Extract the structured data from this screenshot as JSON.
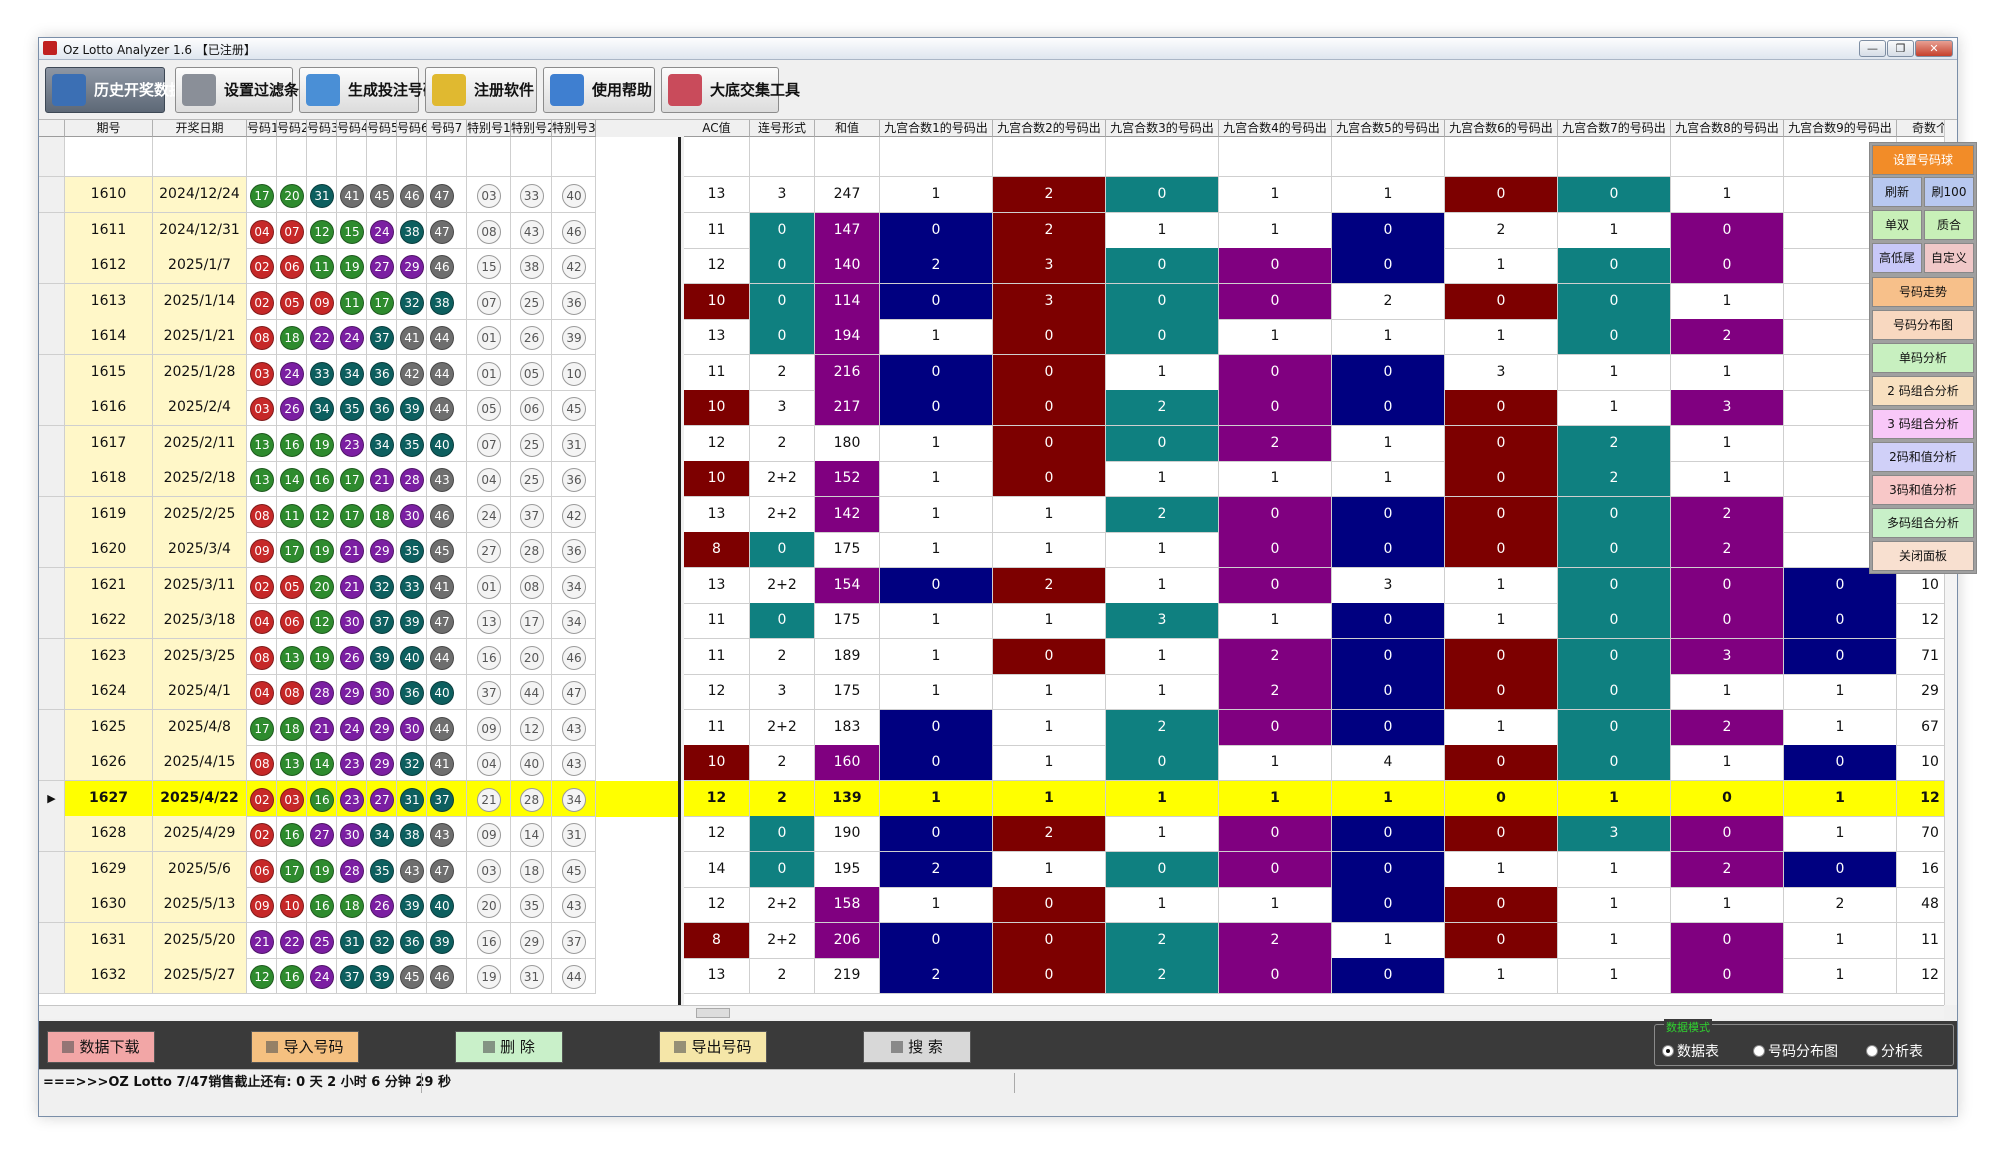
{
  "window": {
    "title": "Oz Lotto Analyzer 1.6 【已注册】",
    "controls": {
      "minimize": "—",
      "maximize": "❐",
      "close": "✕"
    }
  },
  "toolbar": [
    {
      "label": "历史开奖数据",
      "icon": "calendar-icon",
      "color": "#3b6fb4",
      "active": true
    },
    {
      "label": "设置过滤条件",
      "icon": "tools-icon",
      "color": "#8a8f98"
    },
    {
      "label": "生成投注号码",
      "icon": "arrow-icon",
      "color": "#4a8fd6"
    },
    {
      "label": "注册软件",
      "icon": "key-icon",
      "color": "#e0b930"
    },
    {
      "label": "使用帮助",
      "icon": "help-icon",
      "color": "#3f7fd0"
    },
    {
      "label": "大底交集工具",
      "icon": "pie-chart-icon",
      "color": "#c94b5b"
    }
  ],
  "left_columns": [
    "期号",
    "开奖日期",
    "号码1",
    "号码2",
    "号码3",
    "号码4",
    "号码5",
    "号码6",
    "号码7",
    "特别号1",
    "特别号2",
    "特别号3"
  ],
  "right_columns": [
    "AC值",
    "连号形式",
    "和值",
    "九宫合数1的号码出",
    "九宫合数2的号码出",
    "九宫合数3的号码出",
    "九宫合数4的号码出",
    "九宫合数5的号码出",
    "九宫合数6的号码出",
    "九宫合数7的号码出",
    "九宫合数8的号码出",
    "九宫合数9的号码出",
    "奇数个"
  ],
  "selected_issue": "1627",
  "rows": [
    {
      "issue": "1610",
      "date": "2024/12/24",
      "nums": [
        "17",
        "20",
        "31",
        "41",
        "45",
        "46",
        "47"
      ],
      "specials": [
        "03",
        "33",
        "40"
      ],
      "stats": [
        "13",
        "3",
        "247",
        "1",
        "2",
        "0",
        "1",
        "1",
        "0",
        "0",
        "1",
        ""
      ]
    },
    {
      "issue": "1611",
      "date": "2024/12/31",
      "nums": [
        "04",
        "07",
        "12",
        "15",
        "24",
        "38",
        "47"
      ],
      "specials": [
        "08",
        "43",
        "46"
      ],
      "stats": [
        "11",
        "0",
        "147",
        "0",
        "2",
        "1",
        "1",
        "0",
        "2",
        "1",
        "0",
        ""
      ]
    },
    {
      "issue": "1612",
      "date": "2025/1/7",
      "nums": [
        "02",
        "06",
        "11",
        "19",
        "27",
        "29",
        "46"
      ],
      "specials": [
        "15",
        "38",
        "42"
      ],
      "stats": [
        "12",
        "0",
        "140",
        "2",
        "3",
        "0",
        "0",
        "0",
        "1",
        "0",
        "0",
        ""
      ]
    },
    {
      "issue": "1613",
      "date": "2025/1/14",
      "nums": [
        "02",
        "05",
        "09",
        "11",
        "17",
        "32",
        "38"
      ],
      "specials": [
        "07",
        "25",
        "36"
      ],
      "stats": [
        "10",
        "0",
        "114",
        "0",
        "3",
        "0",
        "0",
        "2",
        "0",
        "0",
        "1",
        ""
      ]
    },
    {
      "issue": "1614",
      "date": "2025/1/21",
      "nums": [
        "08",
        "18",
        "22",
        "24",
        "37",
        "41",
        "44"
      ],
      "specials": [
        "01",
        "26",
        "39"
      ],
      "stats": [
        "13",
        "0",
        "194",
        "1",
        "0",
        "0",
        "1",
        "1",
        "1",
        "0",
        "2",
        ""
      ]
    },
    {
      "issue": "1615",
      "date": "2025/1/28",
      "nums": [
        "03",
        "24",
        "33",
        "34",
        "36",
        "42",
        "44"
      ],
      "specials": [
        "01",
        "05",
        "10"
      ],
      "stats": [
        "11",
        "2",
        "216",
        "0",
        "0",
        "1",
        "0",
        "0",
        "3",
        "1",
        "1",
        ""
      ]
    },
    {
      "issue": "1616",
      "date": "2025/2/4",
      "nums": [
        "03",
        "26",
        "34",
        "35",
        "36",
        "39",
        "44"
      ],
      "specials": [
        "05",
        "06",
        "45"
      ],
      "stats": [
        "10",
        "3",
        "217",
        "0",
        "0",
        "2",
        "0",
        "0",
        "0",
        "1",
        "3",
        ""
      ]
    },
    {
      "issue": "1617",
      "date": "2025/2/11",
      "nums": [
        "13",
        "16",
        "19",
        "23",
        "34",
        "35",
        "40"
      ],
      "specials": [
        "07",
        "25",
        "31"
      ],
      "stats": [
        "12",
        "2",
        "180",
        "1",
        "0",
        "0",
        "2",
        "1",
        "0",
        "2",
        "1",
        ""
      ]
    },
    {
      "issue": "1618",
      "date": "2025/2/18",
      "nums": [
        "13",
        "14",
        "16",
        "17",
        "21",
        "28",
        "43"
      ],
      "specials": [
        "04",
        "25",
        "36"
      ],
      "stats": [
        "10",
        "2+2",
        "152",
        "1",
        "0",
        "1",
        "1",
        "1",
        "0",
        "2",
        "1",
        ""
      ]
    },
    {
      "issue": "1619",
      "date": "2025/2/25",
      "nums": [
        "08",
        "11",
        "12",
        "17",
        "18",
        "30",
        "46"
      ],
      "specials": [
        "24",
        "37",
        "42"
      ],
      "stats": [
        "13",
        "2+2",
        "142",
        "1",
        "1",
        "2",
        "0",
        "0",
        "0",
        "0",
        "2",
        ""
      ]
    },
    {
      "issue": "1620",
      "date": "2025/3/4",
      "nums": [
        "09",
        "17",
        "19",
        "21",
        "29",
        "35",
        "45"
      ],
      "specials": [
        "27",
        "28",
        "36"
      ],
      "stats": [
        "8",
        "0",
        "175",
        "1",
        "1",
        "1",
        "0",
        "0",
        "0",
        "0",
        "2",
        ""
      ]
    },
    {
      "issue": "1621",
      "date": "2025/3/11",
      "nums": [
        "02",
        "05",
        "20",
        "21",
        "32",
        "33",
        "41"
      ],
      "specials": [
        "01",
        "08",
        "34"
      ],
      "stats": [
        "13",
        "2+2",
        "154",
        "0",
        "2",
        "1",
        "0",
        "3",
        "1",
        "0",
        "0",
        "0",
        "10"
      ]
    },
    {
      "issue": "1622",
      "date": "2025/3/18",
      "nums": [
        "04",
        "06",
        "12",
        "30",
        "37",
        "39",
        "47"
      ],
      "specials": [
        "13",
        "17",
        "34"
      ],
      "stats": [
        "11",
        "0",
        "175",
        "1",
        "1",
        "3",
        "1",
        "0",
        "1",
        "0",
        "0",
        "0",
        "12"
      ]
    },
    {
      "issue": "1623",
      "date": "2025/3/25",
      "nums": [
        "08",
        "13",
        "19",
        "26",
        "39",
        "40",
        "44"
      ],
      "specials": [
        "16",
        "20",
        "46"
      ],
      "stats": [
        "11",
        "2",
        "189",
        "1",
        "0",
        "1",
        "2",
        "0",
        "0",
        "0",
        "3",
        "0",
        "71"
      ]
    },
    {
      "issue": "1624",
      "date": "2025/4/1",
      "nums": [
        "04",
        "08",
        "28",
        "29",
        "30",
        "36",
        "40"
      ],
      "specials": [
        "37",
        "44",
        "47"
      ],
      "stats": [
        "12",
        "3",
        "175",
        "1",
        "1",
        "1",
        "2",
        "0",
        "0",
        "0",
        "1",
        "1",
        "29"
      ]
    },
    {
      "issue": "1625",
      "date": "2025/4/8",
      "nums": [
        "17",
        "18",
        "21",
        "24",
        "29",
        "30",
        "44"
      ],
      "specials": [
        "09",
        "12",
        "43"
      ],
      "stats": [
        "11",
        "2+2",
        "183",
        "0",
        "1",
        "2",
        "0",
        "0",
        "1",
        "0",
        "2",
        "1",
        "67"
      ]
    },
    {
      "issue": "1626",
      "date": "2025/4/15",
      "nums": [
        "08",
        "13",
        "14",
        "23",
        "29",
        "32",
        "41"
      ],
      "specials": [
        "04",
        "40",
        "43"
      ],
      "stats": [
        "10",
        "2",
        "160",
        "0",
        "1",
        "0",
        "1",
        "4",
        "0",
        "0",
        "1",
        "0",
        "10"
      ]
    },
    {
      "issue": "1627",
      "date": "2025/4/22",
      "nums": [
        "02",
        "03",
        "16",
        "23",
        "27",
        "31",
        "37"
      ],
      "specials": [
        "21",
        "28",
        "34"
      ],
      "stats": [
        "12",
        "2",
        "139",
        "1",
        "1",
        "1",
        "1",
        "1",
        "0",
        "1",
        "0",
        "1",
        "12"
      ]
    },
    {
      "issue": "1628",
      "date": "2025/4/29",
      "nums": [
        "02",
        "16",
        "27",
        "30",
        "34",
        "38",
        "43"
      ],
      "specials": [
        "09",
        "14",
        "31"
      ],
      "stats": [
        "12",
        "0",
        "190",
        "0",
        "2",
        "1",
        "0",
        "0",
        "0",
        "3",
        "0",
        "1",
        "70"
      ]
    },
    {
      "issue": "1629",
      "date": "2025/5/6",
      "nums": [
        "06",
        "17",
        "19",
        "28",
        "35",
        "43",
        "47"
      ],
      "specials": [
        "03",
        "18",
        "45"
      ],
      "stats": [
        "14",
        "0",
        "195",
        "2",
        "1",
        "0",
        "0",
        "0",
        "1",
        "1",
        "2",
        "0",
        "16"
      ]
    },
    {
      "issue": "1630",
      "date": "2025/5/13",
      "nums": [
        "09",
        "10",
        "16",
        "18",
        "26",
        "39",
        "40"
      ],
      "specials": [
        "20",
        "35",
        "43"
      ],
      "stats": [
        "12",
        "2+2",
        "158",
        "1",
        "0",
        "1",
        "1",
        "0",
        "0",
        "1",
        "1",
        "2",
        "48"
      ]
    },
    {
      "issue": "1631",
      "date": "2025/5/20",
      "nums": [
        "21",
        "22",
        "25",
        "31",
        "32",
        "36",
        "39"
      ],
      "specials": [
        "16",
        "29",
        "37"
      ],
      "stats": [
        "8",
        "2+2",
        "206",
        "0",
        "0",
        "2",
        "2",
        "1",
        "0",
        "1",
        "0",
        "1",
        "11"
      ]
    },
    {
      "issue": "1632",
      "date": "2025/5/27",
      "nums": [
        "12",
        "16",
        "24",
        "37",
        "39",
        "45",
        "46"
      ],
      "specials": [
        "19",
        "31",
        "44"
      ],
      "stats": [
        "13",
        "2",
        "219",
        "2",
        "0",
        "2",
        "0",
        "0",
        "1",
        "1",
        "0",
        "1",
        "12"
      ]
    }
  ],
  "float_panel": {
    "title": "设置号码球",
    "row2": [
      "刷新",
      "刷100"
    ],
    "row3": [
      "单双",
      "质合"
    ],
    "row4": [
      "高低尾",
      "自定义"
    ],
    "items": [
      "号码走势",
      "号码分布图",
      "单码分析",
      "2 码组合分析",
      "3 码组合分析",
      "2码和值分析",
      "3码和值分析",
      "多码组合分析",
      "关闭面板"
    ]
  },
  "bottom_buttons": [
    {
      "label": "数据下载",
      "icon": "download-icon",
      "bg": "#f2a6a6"
    },
    {
      "label": "导入号码",
      "icon": "import-icon",
      "bg": "#f5c080"
    },
    {
      "label": "删 除",
      "icon": "delete-icon",
      "bg": "#c9f0c9"
    },
    {
      "label": "导出号码",
      "icon": "export-icon",
      "bg": "#f5e6a8"
    },
    {
      "label": "搜 索",
      "icon": "search-icon",
      "bg": "#d8d8d8"
    }
  ],
  "mode": {
    "legend": "数据模式",
    "options": [
      "数据表",
      "号码分布图",
      "分析表"
    ],
    "selected": "数据表"
  },
  "status": {
    "text": "===>>>OZ Lotto 7/47销售截止还有: 0 天 2 小时 6 分钟 29 秒"
  },
  "colors": {
    "red": "#c62828",
    "green": "#2e8b2e",
    "purple": "#7b1fa2",
    "teal": "#0d5f5f",
    "gray": "#6e6e6e",
    "navy": "#000080",
    "maroon": "#7d0000",
    "tealcell": "#0f8080",
    "violet": "#800080",
    "highlight": "#ffff00",
    "datecol": "#fff7c8"
  }
}
